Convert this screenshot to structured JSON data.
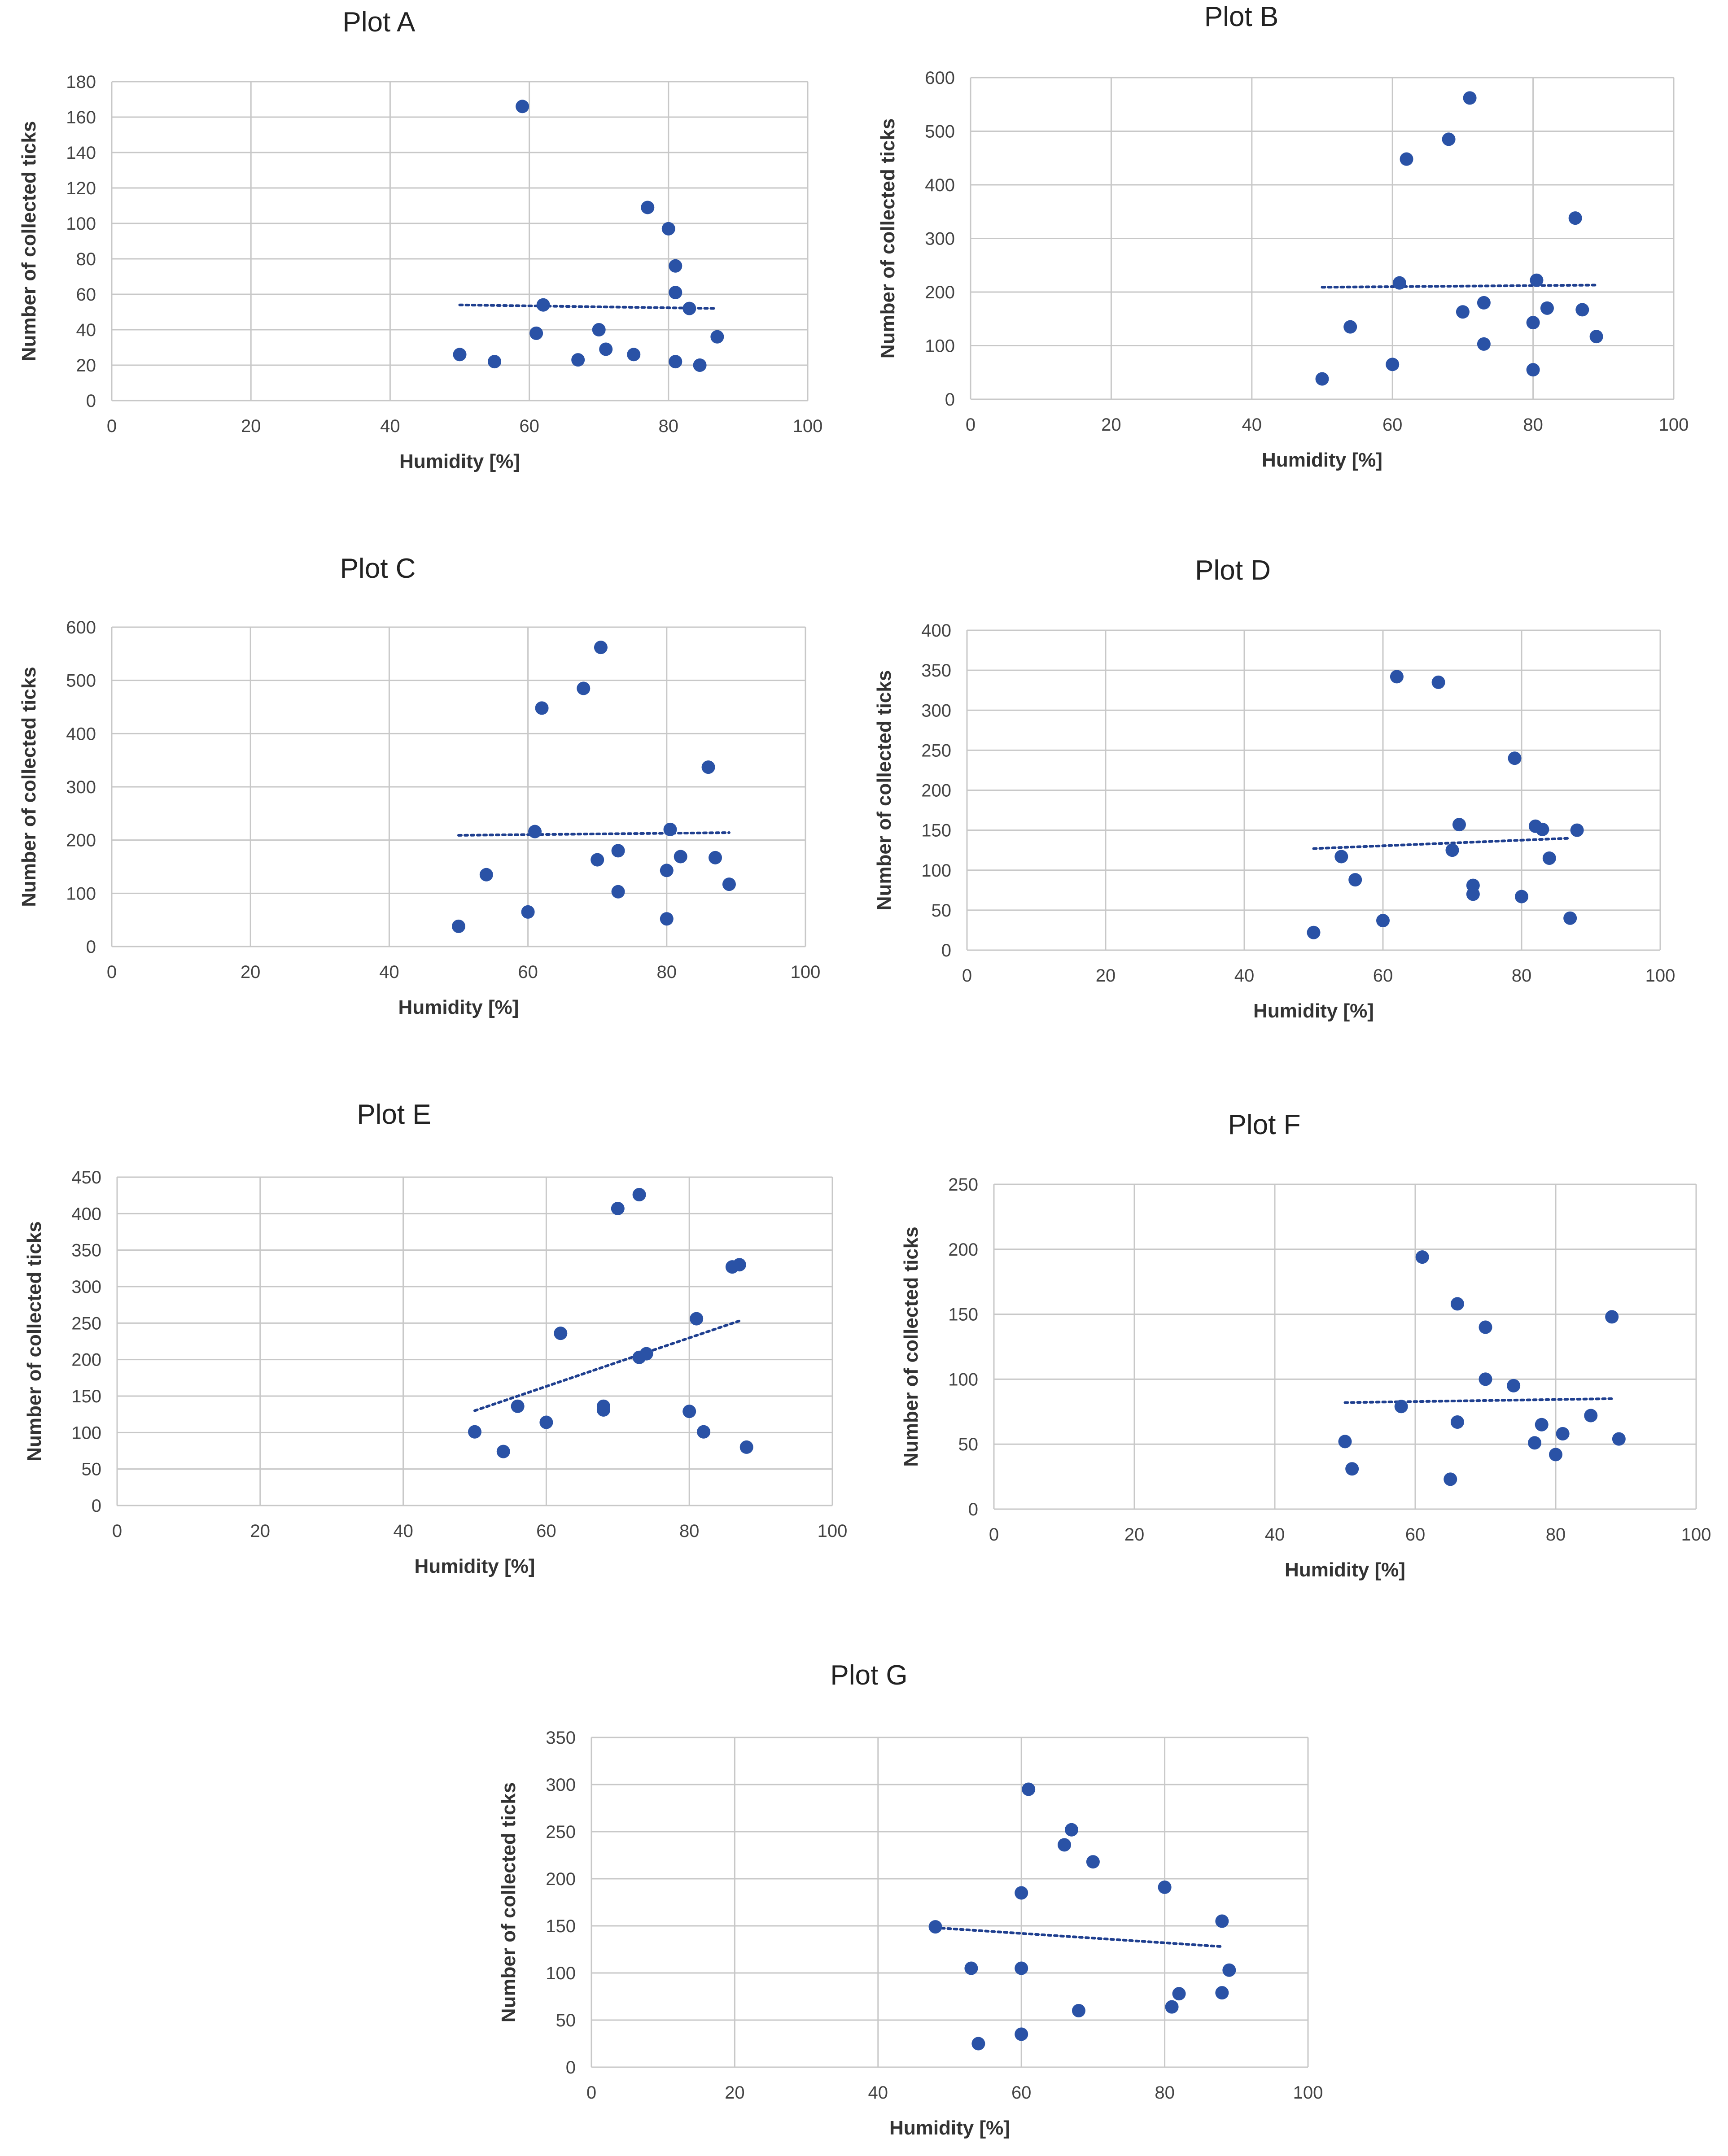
{
  "colors": {
    "point": "#2a52a6",
    "trend": "#1f3f8f",
    "grid": "#c8c8c8",
    "text": "#333333"
  },
  "chart_data": [
    {
      "type": "scatter",
      "title": "Plot A",
      "xlabel": "Humidity [%]",
      "ylabel": "Number of collected ticks",
      "xlim": [
        0,
        100
      ],
      "ylim": [
        0,
        180
      ],
      "xticks": [
        0,
        20,
        40,
        60,
        80,
        100
      ],
      "yticks": [
        0,
        20,
        40,
        60,
        80,
        100,
        120,
        140,
        160,
        180
      ],
      "grid": true,
      "x": [
        50,
        55,
        59,
        61,
        62,
        67,
        70,
        71,
        75,
        77,
        80,
        81,
        81,
        81,
        83,
        84.5,
        87
      ],
      "y": [
        26,
        22,
        166,
        38,
        54,
        23,
        40,
        29,
        26,
        109,
        97,
        76,
        61,
        22,
        52,
        20,
        36
      ],
      "trendline": {
        "x": [
          50,
          87
        ],
        "y": [
          54,
          52
        ]
      }
    },
    {
      "type": "scatter",
      "title": "Plot B",
      "xlabel": "Humidity [%]",
      "ylabel": "Number of collected ticks",
      "xlim": [
        0,
        100
      ],
      "ylim": [
        0,
        600
      ],
      "xticks": [
        0,
        20,
        40,
        60,
        80,
        100
      ],
      "yticks": [
        0,
        100,
        200,
        300,
        400,
        500,
        600
      ],
      "grid": true,
      "x": [
        50,
        54,
        60,
        61,
        62,
        68,
        70,
        71,
        73,
        73,
        80,
        80,
        80.5,
        82,
        86,
        87,
        89
      ],
      "y": [
        38,
        135,
        65,
        217,
        448,
        485,
        163,
        562,
        103,
        180,
        55,
        143,
        222,
        170,
        338,
        167,
        117
      ],
      "trendline": {
        "x": [
          50,
          89
        ],
        "y": [
          209,
          213
        ]
      }
    },
    {
      "type": "scatter",
      "title": "Plot C",
      "xlabel": "Humidity [%]",
      "ylabel": "Number of collected ticks",
      "xlim": [
        0,
        100
      ],
      "ylim": [
        0,
        600
      ],
      "xticks": [
        0,
        20,
        40,
        60,
        80,
        100
      ],
      "yticks": [
        0,
        100,
        200,
        300,
        400,
        500,
        600
      ],
      "grid": true,
      "x": [
        50,
        54,
        60,
        61,
        62,
        68,
        70,
        70.5,
        73,
        73,
        80,
        80,
        80.5,
        82,
        86,
        87,
        89
      ],
      "y": [
        38,
        135,
        65,
        216,
        448,
        485,
        163,
        562,
        103,
        180,
        52,
        143,
        220,
        169,
        337,
        167,
        117
      ],
      "trendline": {
        "x": [
          50,
          89
        ],
        "y": [
          209,
          214
        ]
      }
    },
    {
      "type": "scatter",
      "title": "Plot D",
      "xlabel": "Humidity [%]",
      "ylabel": "Number of collected ticks",
      "xlim": [
        0,
        100
      ],
      "ylim": [
        0,
        400
      ],
      "xticks": [
        0,
        20,
        40,
        60,
        80,
        100
      ],
      "yticks": [
        0,
        50,
        100,
        150,
        200,
        250,
        300,
        350,
        400
      ],
      "grid": true,
      "x": [
        50,
        54,
        56,
        60,
        62,
        68,
        70,
        71,
        73,
        73,
        79,
        80,
        82,
        83,
        84,
        87,
        88
      ],
      "y": [
        22,
        117,
        88,
        37,
        342,
        335,
        125,
        157,
        81,
        70,
        240,
        67,
        155,
        151,
        115,
        40,
        150
      ],
      "trendline": {
        "x": [
          50,
          87
        ],
        "y": [
          127,
          140
        ]
      }
    },
    {
      "type": "scatter",
      "title": "Plot E",
      "xlabel": "Humidity [%]",
      "ylabel": "Number of collected ticks",
      "xlim": [
        0,
        100
      ],
      "ylim": [
        0,
        450
      ],
      "xticks": [
        0,
        20,
        40,
        60,
        80,
        100
      ],
      "yticks": [
        0,
        50,
        100,
        150,
        200,
        250,
        300,
        350,
        400,
        450
      ],
      "grid": true,
      "x": [
        50,
        54,
        56,
        60,
        62,
        68,
        68,
        70,
        73,
        73,
        74,
        80,
        81,
        82,
        86,
        87,
        88
      ],
      "y": [
        101,
        74,
        136,
        114,
        236,
        136,
        131,
        407,
        426,
        203,
        208,
        129,
        256,
        101,
        327,
        330,
        80
      ],
      "trendline": {
        "x": [
          50,
          87
        ],
        "y": [
          130,
          253
        ]
      }
    },
    {
      "type": "scatter",
      "title": "Plot F",
      "xlabel": "Humidity [%]",
      "ylabel": "Number of collected ticks",
      "xlim": [
        0,
        100
      ],
      "ylim": [
        0,
        250
      ],
      "xticks": [
        0,
        20,
        40,
        60,
        80,
        100
      ],
      "yticks": [
        0,
        50,
        100,
        150,
        200,
        250
      ],
      "grid": true,
      "x": [
        50,
        51,
        58,
        61,
        65,
        66,
        66,
        70,
        70,
        74,
        77,
        78,
        80,
        81,
        85,
        88,
        89
      ],
      "y": [
        52,
        31,
        79,
        194,
        23,
        158,
        67,
        140,
        100,
        95,
        51,
        65,
        42,
        58,
        72,
        148,
        54
      ],
      "trendline": {
        "x": [
          50,
          88
        ],
        "y": [
          82,
          85
        ]
      }
    },
    {
      "type": "scatter",
      "title": "Plot G",
      "xlabel": "Humidity [%]",
      "ylabel": "Number of collected ticks",
      "xlim": [
        0,
        100
      ],
      "ylim": [
        0,
        350
      ],
      "xticks": [
        0,
        20,
        40,
        60,
        80,
        100
      ],
      "yticks": [
        0,
        50,
        100,
        150,
        200,
        250,
        300,
        350
      ],
      "grid": true,
      "x": [
        48,
        53,
        54,
        60,
        60,
        60,
        61,
        66,
        67,
        68,
        70,
        80,
        81,
        82,
        88,
        88,
        89
      ],
      "y": [
        149,
        105,
        25,
        35,
        185,
        105,
        295,
        236,
        252,
        60,
        218,
        191,
        64,
        78,
        155,
        79,
        103
      ],
      "trendline": {
        "x": [
          48,
          88
        ],
        "y": [
          148,
          128
        ]
      }
    }
  ]
}
